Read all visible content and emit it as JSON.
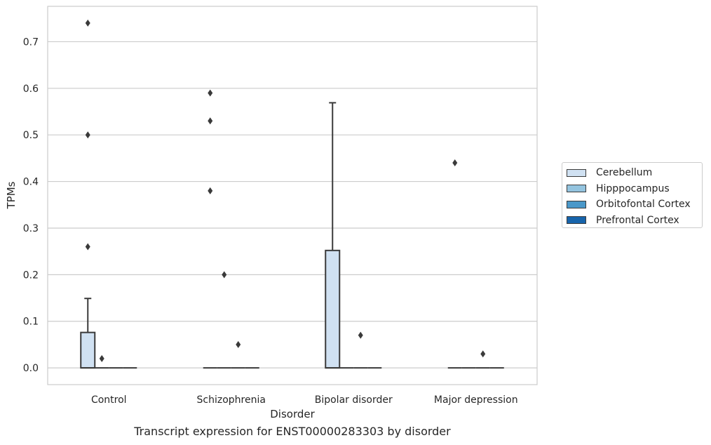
{
  "chart_data": {
    "type": "box",
    "title": "",
    "caption": "Transcript expression for ENST00000283303 by disorder",
    "xlabel": "Disorder",
    "ylabel": "TPMs",
    "ylim": [
      -0.036,
      0.776
    ],
    "yticks": [
      "0.0",
      "0.1",
      "0.2",
      "0.3",
      "0.4",
      "0.5",
      "0.6",
      "0.7"
    ],
    "categories": [
      "Control",
      "Schizophrenia",
      "Bipolar disorder",
      "Major depression"
    ],
    "grid": "horizontal",
    "legend_position": "right",
    "series": [
      {
        "name": "Cerebellum",
        "color": "#d0e1f2",
        "boxes": [
          {
            "category": "Control",
            "q1": 0.0,
            "median": 0.0,
            "q3": 0.076,
            "whisker_low": 0.0,
            "whisker_high": 0.149,
            "outliers": [
              0.26,
              0.5,
              0.74
            ]
          },
          {
            "category": "Schizophrenia",
            "q1": 0.0,
            "median": 0.0,
            "q3": 0.0,
            "whisker_low": 0.0,
            "whisker_high": 0.0,
            "outliers": [
              0.38,
              0.53,
              0.59
            ]
          },
          {
            "category": "Bipolar disorder",
            "q1": 0.0,
            "median": 0.0,
            "q3": 0.252,
            "whisker_low": 0.0,
            "whisker_high": 0.569,
            "outliers": []
          },
          {
            "category": "Major depression",
            "q1": 0.0,
            "median": 0.0,
            "q3": 0.0,
            "whisker_low": 0.0,
            "whisker_high": 0.0,
            "outliers": [
              0.44
            ]
          }
        ]
      },
      {
        "name": "Hipppocampus",
        "color": "#94c4df",
        "boxes": [
          {
            "category": "Control",
            "q1": 0.0,
            "median": 0.0,
            "q3": 0.0,
            "whisker_low": 0.0,
            "whisker_high": 0.0,
            "outliers": [
              0.02
            ]
          },
          {
            "category": "Schizophrenia",
            "q1": 0.0,
            "median": 0.0,
            "q3": 0.0,
            "whisker_low": 0.0,
            "whisker_high": 0.0,
            "outliers": [
              0.2
            ]
          },
          {
            "category": "Bipolar disorder",
            "q1": 0.0,
            "median": 0.0,
            "q3": 0.0,
            "whisker_low": 0.0,
            "whisker_high": 0.0,
            "outliers": []
          },
          {
            "category": "Major depression",
            "q1": 0.0,
            "median": 0.0,
            "q3": 0.0,
            "whisker_low": 0.0,
            "whisker_high": 0.0,
            "outliers": []
          }
        ]
      },
      {
        "name": "Orbitofontal Cortex",
        "color": "#4a98c9",
        "boxes": [
          {
            "category": "Control",
            "q1": 0.0,
            "median": 0.0,
            "q3": 0.0,
            "whisker_low": 0.0,
            "whisker_high": 0.0,
            "outliers": []
          },
          {
            "category": "Schizophrenia",
            "q1": 0.0,
            "median": 0.0,
            "q3": 0.0,
            "whisker_low": 0.0,
            "whisker_high": 0.0,
            "outliers": [
              0.05
            ]
          },
          {
            "category": "Bipolar disorder",
            "q1": 0.0,
            "median": 0.0,
            "q3": 0.0,
            "whisker_low": 0.0,
            "whisker_high": 0.0,
            "outliers": [
              0.07
            ]
          },
          {
            "category": "Major depression",
            "q1": 0.0,
            "median": 0.0,
            "q3": 0.0,
            "whisker_low": 0.0,
            "whisker_high": 0.0,
            "outliers": [
              0.03
            ]
          }
        ]
      },
      {
        "name": "Prefrontal Cortex",
        "color": "#1764ab",
        "boxes": [
          {
            "category": "Control",
            "q1": 0.0,
            "median": 0.0,
            "q3": 0.0,
            "whisker_low": 0.0,
            "whisker_high": 0.0,
            "outliers": []
          },
          {
            "category": "Schizophrenia",
            "q1": 0.0,
            "median": 0.0,
            "q3": 0.0,
            "whisker_low": 0.0,
            "whisker_high": 0.0,
            "outliers": []
          },
          {
            "category": "Bipolar disorder",
            "q1": 0.0,
            "median": 0.0,
            "q3": 0.0,
            "whisker_low": 0.0,
            "whisker_high": 0.0,
            "outliers": []
          },
          {
            "category": "Major depression",
            "q1": 0.0,
            "median": 0.0,
            "q3": 0.0,
            "whisker_low": 0.0,
            "whisker_high": 0.0,
            "outliers": []
          }
        ]
      }
    ]
  }
}
